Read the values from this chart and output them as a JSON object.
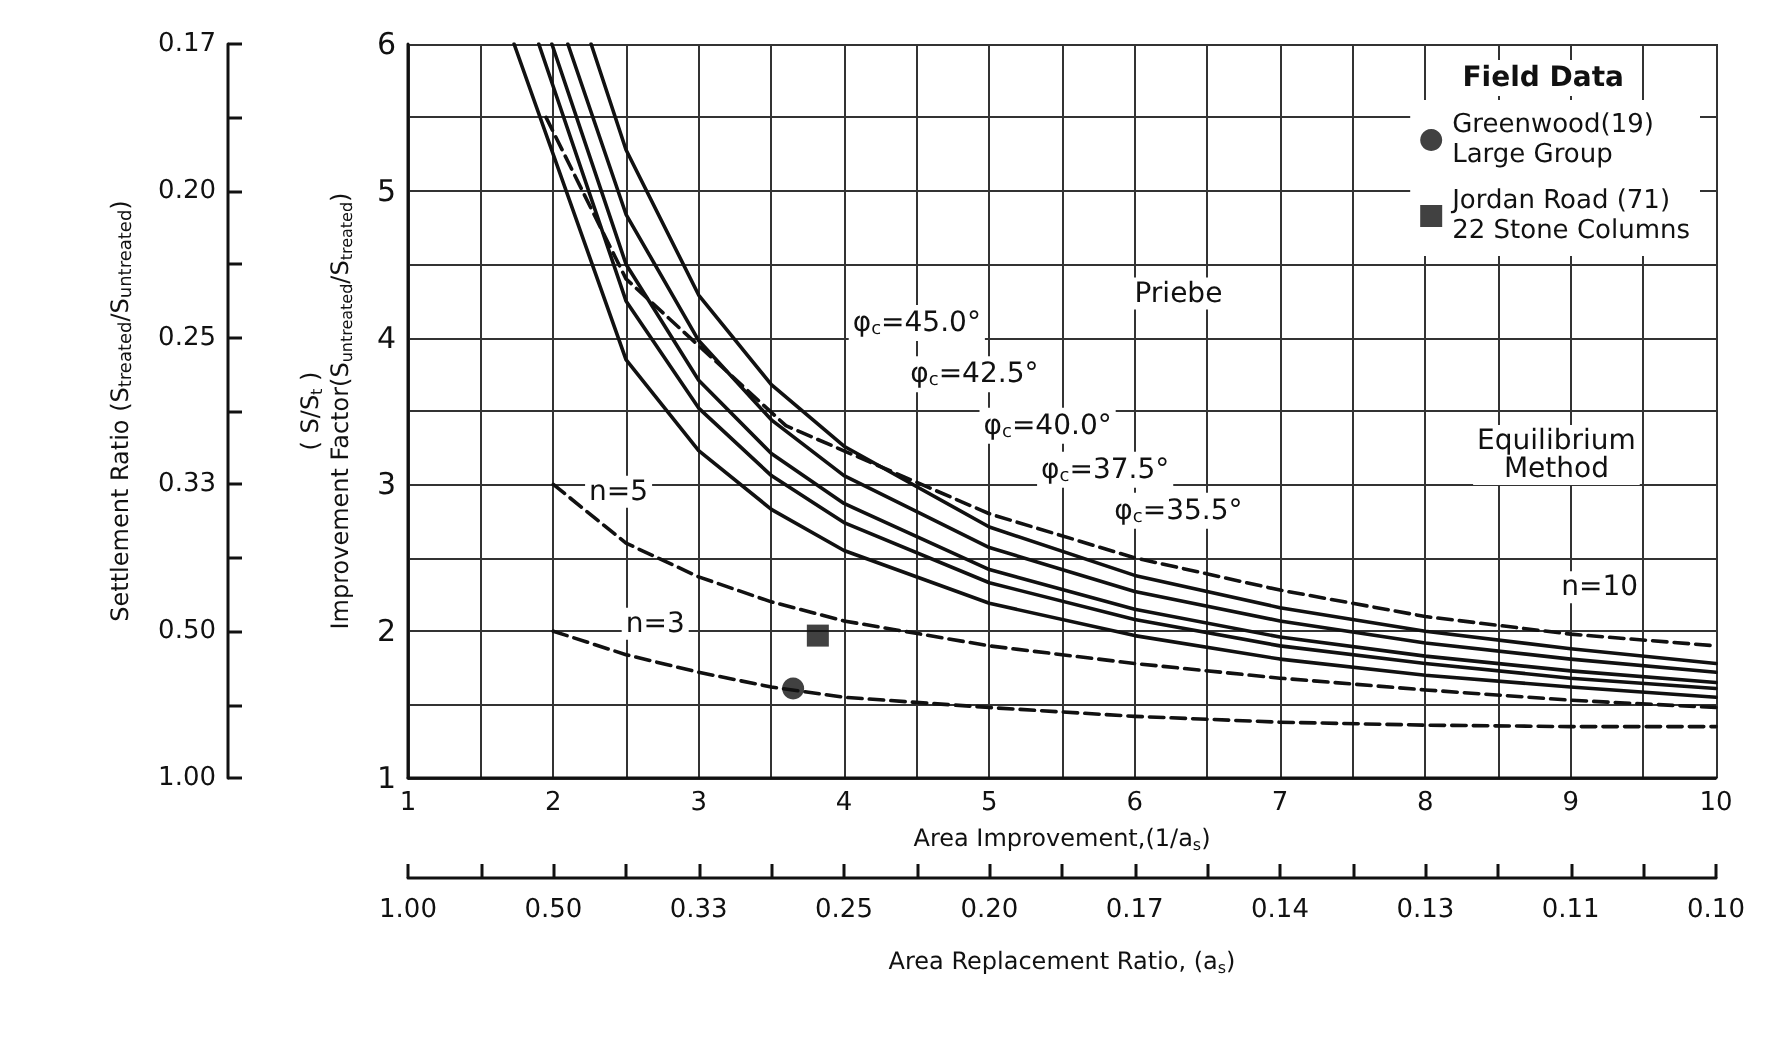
{
  "chart_data": {
    "type": "line",
    "xlabel": "Area Improvement,(1/a$_{s}$)",
    "ylabel": "( S/S$_{t}$ )\nImprovement Factor(S$_{untreated}$/S$_{treated}$)",
    "x2label": "Area Replacement Ratio, (a$_{s}$)",
    "legend_title": "Field Data",
    "xlim": [
      1,
      10
    ],
    "xticks": [
      1,
      {
        "value": 1.5,
        "label": null
      },
      2,
      {
        "value": 2.5,
        "label": null
      },
      3,
      {
        "value": 3.5,
        "label": null
      },
      4,
      {
        "value": 4.5,
        "label": null
      },
      5,
      {
        "value": 5.5,
        "label": null
      },
      6,
      {
        "value": 6.5,
        "label": null
      },
      7,
      {
        "value": 7.5,
        "label": null
      },
      8,
      {
        "value": 8.5,
        "label": null
      },
      9,
      {
        "value": 9.5,
        "label": null
      },
      10
    ],
    "ylim": [
      1,
      6
    ],
    "yticks": [
      1,
      {
        "value": 1.5,
        "label": null
      },
      2,
      {
        "value": 2.5,
        "label": null
      },
      3,
      {
        "value": 3.5,
        "label": null
      },
      4,
      {
        "value": 4.5,
        "label": null
      },
      5,
      {
        "value": 5.5,
        "label": null
      },
      6
    ],
    "y2_categories": [
      "0.17",
      null,
      "0.20",
      null,
      "0.25",
      null,
      "0.33",
      null,
      "0.50",
      null,
      "1.00"
    ],
    "grid": true,
    "legend": "top right",
    "series": [
      {
        "color": "#111111",
        "line_style": "solid",
        "x": [
          2.26,
          2.5,
          3,
          3.5,
          4,
          5,
          6,
          7,
          8,
          9,
          10
        ],
        "values": [
          6,
          5.28,
          4.29,
          3.68,
          3.26,
          2.71,
          2.38,
          2.16,
          2.0,
          1.88,
          1.78
        ]
      },
      {
        "color": "#111111",
        "line_style": "solid",
        "x": [
          2.1,
          2.5,
          3,
          3.5,
          4,
          5,
          6,
          7,
          8,
          9,
          10
        ],
        "values": [
          6,
          4.84,
          3.98,
          3.44,
          3.06,
          2.57,
          2.27,
          2.07,
          1.92,
          1.81,
          1.72
        ]
      },
      {
        "color": "#111111",
        "line_style": "solid",
        "x": [
          1.99,
          2.5,
          3,
          3.5,
          4,
          5,
          6,
          7,
          8,
          9,
          10
        ],
        "values": [
          6,
          4.5,
          3.71,
          3.21,
          2.87,
          2.42,
          2.15,
          1.96,
          1.83,
          1.73,
          1.65
        ]
      },
      {
        "color": "#111111",
        "line_style": "solid",
        "x": [
          1.9,
          2.5,
          3,
          3.5,
          4,
          5,
          6,
          7,
          8,
          9,
          10
        ],
        "values": [
          6,
          4.25,
          3.52,
          3.06,
          2.74,
          2.33,
          2.08,
          1.9,
          1.78,
          1.68,
          1.61
        ]
      },
      {
        "color": "#111111",
        "line_style": "solid",
        "x": [
          1.73,
          2.5,
          3,
          3.5,
          4,
          5,
          6,
          7,
          8,
          9,
          10
        ],
        "values": [
          6,
          3.85,
          3.23,
          2.83,
          2.55,
          2.19,
          1.97,
          1.81,
          1.7,
          1.62,
          1.55
        ]
      },
      {
        "color": "#111111",
        "line_style": "dashed",
        "x": [
          1.95,
          2.5,
          3.6,
          5,
          6,
          7,
          8,
          9,
          10
        ],
        "values": [
          5.5,
          4.4,
          3.4,
          2.8,
          2.5,
          2.28,
          2.1,
          1.98,
          1.9
        ]
      },
      {
        "color": "#111111",
        "line_style": "dashed",
        "x": [
          2,
          2.5,
          3,
          3.5,
          4,
          5,
          6,
          7,
          8,
          9,
          10
        ],
        "values": [
          3,
          2.6,
          2.37,
          2.2,
          2.07,
          1.9,
          1.78,
          1.68,
          1.6,
          1.53,
          1.48
        ]
      },
      {
        "color": "#111111",
        "line_style": "dashed",
        "x": [
          2,
          2.5,
          3,
          3.5,
          4,
          5,
          6,
          7,
          8,
          9,
          10
        ],
        "values": [
          2,
          1.84,
          1.72,
          1.62,
          1.55,
          1.48,
          1.42,
          1.38,
          1.36,
          1.35,
          1.35
        ]
      },
      {
        "type": "scatter",
        "name": "Greenwood(19)\nLarge Group",
        "marker": "circle",
        "color": "#111111",
        "x": [
          3.65
        ],
        "values": [
          1.61
        ]
      },
      {
        "type": "scatter",
        "name": "Jordan Road (71)\n22 Stone Columns",
        "marker": "square",
        "color": "#111111",
        "x": [
          3.82
        ],
        "values": [
          1.97
        ]
      }
    ],
    "annotations": [
      "φ$_{c}$=45.0°",
      "φ$_{c}$=42.5°",
      "φ$_{c}$=40.0°",
      "φ$_{c}$=37.5°",
      "φ$_{c}$=35.5°",
      "Priebe",
      "Equilibrium\nMethod",
      "n=10",
      "n=5",
      "n=3",
      "Settlement Ratio (S$_{treated}$/S$_{untreated}$)",
      "1.00",
      "0.50",
      "0.33",
      "0.25",
      "0.20",
      "0.17",
      "0.14",
      "0.13",
      "0.11",
      "0.10"
    ]
  }
}
